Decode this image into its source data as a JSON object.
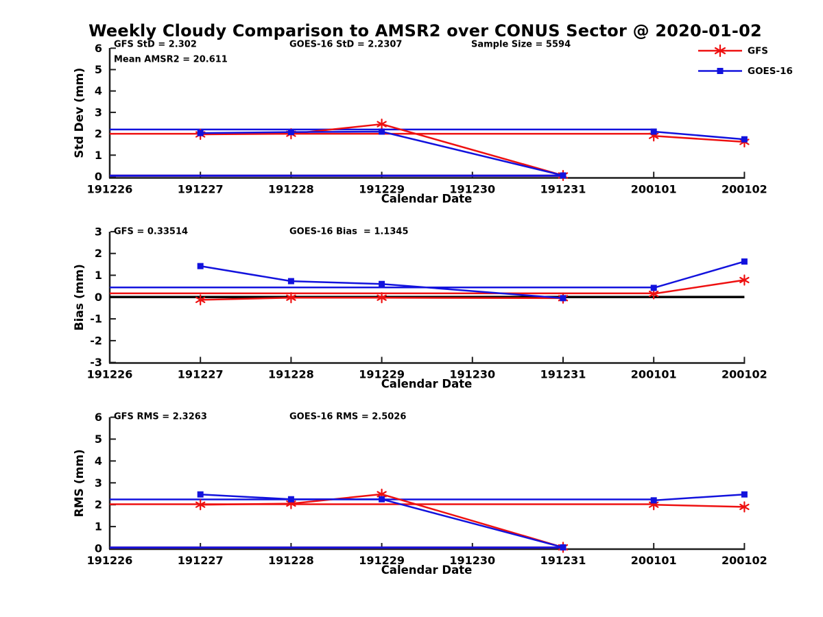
{
  "title": "Weekly Cloudy Comparison to AMSR2 over CONUS Sector @ 2020-01-02",
  "colors": {
    "gfs": "#ee1010",
    "goes16": "#1212dd",
    "black": "#000000",
    "axis": "#1c1c1c"
  },
  "legend": {
    "items": [
      {
        "label": "GFS",
        "key": "gfs",
        "marker": "star"
      },
      {
        "label": "GOES-16",
        "key": "goes16",
        "marker": "square"
      }
    ]
  },
  "x_axis": {
    "label": "Calendar Date",
    "categories": [
      "191226",
      "191227",
      "191228",
      "191229",
      "191230",
      "191231",
      "200101",
      "200102"
    ]
  },
  "chart_data": [
    {
      "type": "line",
      "name": "std-dev",
      "ylabel": "Std Dev (mm)",
      "xlabel": "Calendar Date",
      "ylim": [
        0,
        6
      ],
      "yticks": [
        0,
        1,
        2,
        3,
        4,
        5,
        6
      ],
      "annotations": [
        {
          "slot": "left",
          "text": "GFS StD = 2.302"
        },
        {
          "slot": "left2",
          "text": "Mean AMSR2 = 20.611"
        },
        {
          "slot": "mid",
          "text": "GOES-16 StD = 2.2307"
        },
        {
          "slot": "right",
          "text": "Sample Size = 5594"
        }
      ],
      "series": [
        {
          "name": "GFS",
          "key": "gfs",
          "marker": "star",
          "segments": [
            {
              "x": [
                "191227",
                "191228",
                "191229",
                "191231"
              ],
              "y": [
                1.97,
                2.0,
                2.45,
                0.05
              ]
            },
            {
              "x": [
                "200101",
                "200102"
              ],
              "y": [
                1.9,
                1.62
              ]
            }
          ]
        },
        {
          "name": "GOES-16",
          "key": "goes16",
          "marker": "square",
          "segments": [
            {
              "x": [
                "191227",
                "191228",
                "191229",
                "191231"
              ],
              "y": [
                2.03,
                2.08,
                2.1,
                0.05
              ]
            },
            {
              "x": [
                "200101",
                "200102"
              ],
              "y": [
                2.1,
                1.74
              ]
            }
          ]
        }
      ],
      "ref_lines": [
        {
          "key": "gfs",
          "y": 2.0,
          "x_start": "191226",
          "x_end": "200101"
        },
        {
          "key": "goes16",
          "y": 2.2,
          "x_start": "191226",
          "x_end": "200101"
        }
      ],
      "baseline_segments": [
        {
          "key": "gfs",
          "y": 0.04,
          "x_start": "191226",
          "x_end": "191231"
        },
        {
          "key": "goes16",
          "y": 0.04,
          "x_start": "191226",
          "x_end": "191231"
        }
      ]
    },
    {
      "type": "line",
      "name": "bias",
      "ylabel": "Bias (mm)",
      "xlabel": "Calendar Date",
      "ylim": [
        -3,
        3
      ],
      "yticks": [
        -3,
        -2,
        -1,
        0,
        1,
        2,
        3
      ],
      "annotations": [
        {
          "slot": "left",
          "text": "GFS = 0.33514"
        },
        {
          "slot": "mid",
          "text": "GOES-16 Bias  = 1.1345"
        }
      ],
      "series": [
        {
          "name": "GFS",
          "key": "gfs",
          "marker": "star",
          "segments": [
            {
              "x": [
                "191227",
                "191228",
                "191229",
                "191231"
              ],
              "y": [
                -0.13,
                -0.03,
                -0.03,
                -0.05
              ]
            },
            {
              "x": [
                "200101",
                "200102"
              ],
              "y": [
                0.15,
                0.78
              ]
            }
          ]
        },
        {
          "name": "GOES-16",
          "key": "goes16",
          "marker": "square",
          "segments": [
            {
              "x": [
                "191227",
                "191228",
                "191229",
                "191231"
              ],
              "y": [
                1.42,
                0.73,
                0.6,
                -0.05
              ]
            },
            {
              "x": [
                "200101",
                "200102"
              ],
              "y": [
                0.42,
                1.63
              ]
            }
          ]
        }
      ],
      "ref_lines": [
        {
          "key": "black",
          "y": 0,
          "x_start": "191226",
          "x_end": "200102",
          "width": 3.5
        },
        {
          "key": "gfs",
          "y": 0.17,
          "x_start": "191226",
          "x_end": "200101"
        },
        {
          "key": "goes16",
          "y": 0.44,
          "x_start": "191226",
          "x_end": "200101"
        }
      ],
      "baseline_segments": []
    },
    {
      "type": "line",
      "name": "rms",
      "ylabel": "RMS (mm)",
      "xlabel": "Calendar Date",
      "ylim": [
        0,
        6
      ],
      "yticks": [
        0,
        1,
        2,
        3,
        4,
        5,
        6
      ],
      "annotations": [
        {
          "slot": "left",
          "text": "GFS RMS = 2.3263"
        },
        {
          "slot": "mid",
          "text": "GOES-16 RMS = 2.5026"
        }
      ],
      "series": [
        {
          "name": "GFS",
          "key": "gfs",
          "marker": "star",
          "segments": [
            {
              "x": [
                "191227",
                "191228",
                "191229",
                "191231"
              ],
              "y": [
                2.0,
                2.05,
                2.48,
                0.05
              ]
            },
            {
              "x": [
                "200101",
                "200102"
              ],
              "y": [
                2.0,
                1.9
              ]
            }
          ]
        },
        {
          "name": "GOES-16",
          "key": "goes16",
          "marker": "square",
          "segments": [
            {
              "x": [
                "191227",
                "191228",
                "191229",
                "191231"
              ],
              "y": [
                2.47,
                2.25,
                2.25,
                0.05
              ]
            },
            {
              "x": [
                "200101",
                "200102"
              ],
              "y": [
                2.2,
                2.47
              ]
            }
          ]
        }
      ],
      "ref_lines": [
        {
          "key": "gfs",
          "y": 2.02,
          "x_start": "191226",
          "x_end": "200101"
        },
        {
          "key": "goes16",
          "y": 2.24,
          "x_start": "191226",
          "x_end": "200101"
        }
      ],
      "baseline_segments": [
        {
          "key": "gfs",
          "y": 0.04,
          "x_start": "191226",
          "x_end": "191231"
        },
        {
          "key": "goes16",
          "y": 0.04,
          "x_start": "191226",
          "x_end": "191231"
        }
      ]
    }
  ]
}
